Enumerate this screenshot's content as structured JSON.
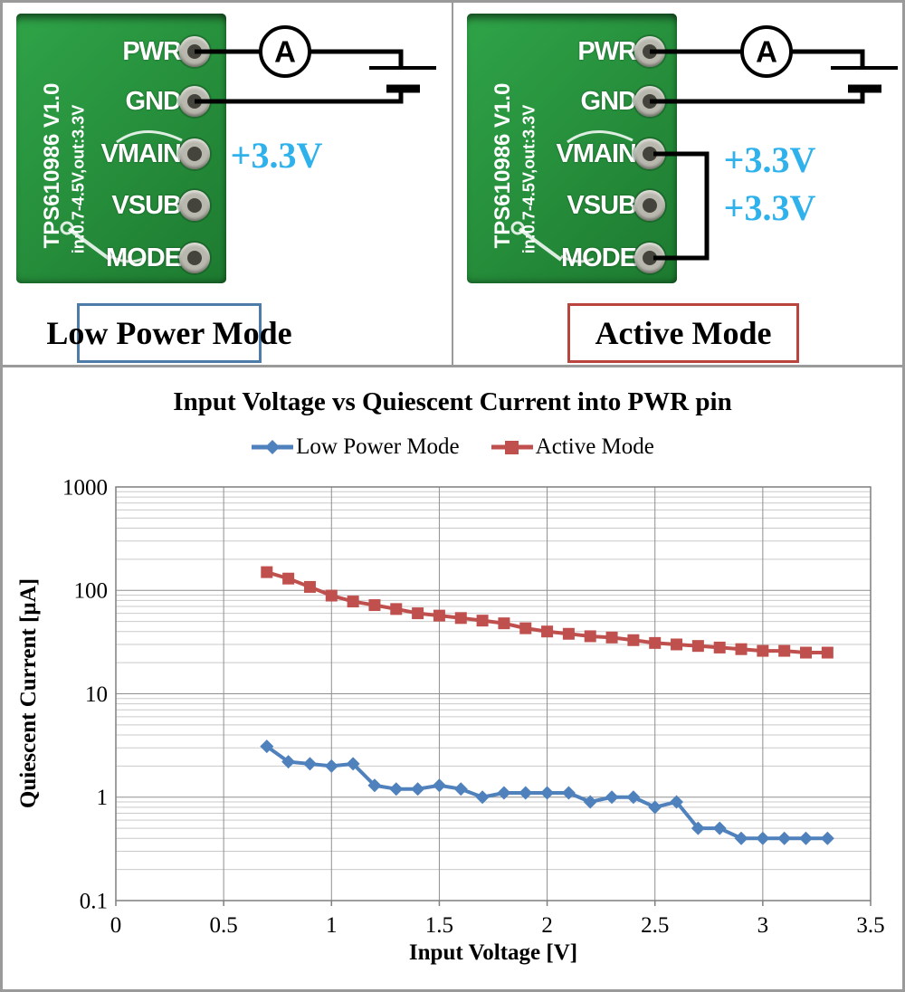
{
  "panels": [
    {
      "id": "low-power",
      "board": {
        "silkscreen_line1": "TPS610986 V1.0",
        "silkscreen_line2": "in:0.7-4.5V,out:3.3V",
        "pins": [
          "PWR",
          "GND",
          "VMAIN",
          "VSUB",
          "MODE"
        ]
      },
      "ammeter_label": "A",
      "voltage_labels": [
        "+3.3V"
      ],
      "caption": "Low Power Mode",
      "caption_border_color": "#4e7ca8"
    },
    {
      "id": "active",
      "board": {
        "silkscreen_line1": "TPS610986 V1.0",
        "silkscreen_line2": "in:0.7-4.5V,out:3.3V",
        "pins": [
          "PWR",
          "GND",
          "VMAIN",
          "VSUB",
          "MODE"
        ]
      },
      "ammeter_label": "A",
      "voltage_labels": [
        "+3.3V",
        "+3.3V"
      ],
      "caption": "Active Mode",
      "caption_border_color": "#b9453e"
    }
  ],
  "colors": {
    "voltage_label": "#2fb1ec",
    "grid_minor": "#c9c9c9",
    "grid_major": "#8f8f8f",
    "plot_border": "#7f7f7f"
  },
  "chart_data": {
    "type": "line",
    "title": "Input Voltage vs Quiescent Current into PWR pin",
    "xlabel": "Input Voltage [V]",
    "ylabel": "Quiescent Current [µA]",
    "x_scale": "linear",
    "y_scale": "log",
    "xlim": [
      0,
      3.5
    ],
    "ylim": [
      0.1,
      1000
    ],
    "grid": true,
    "legend_position": "top-center",
    "x_ticks": [
      0,
      0.5,
      1,
      1.5,
      2,
      2.5,
      3,
      3.5
    ],
    "x_tick_labels": [
      "0",
      "0.5",
      "1",
      "1.5",
      "2",
      "2.5",
      "3",
      "3.5"
    ],
    "y_ticks": [
      0.1,
      1,
      10,
      100,
      1000
    ],
    "y_tick_labels": [
      "0.1",
      "1",
      "10",
      "100",
      "1000"
    ],
    "x": [
      0.7,
      0.8,
      0.9,
      1.0,
      1.1,
      1.2,
      1.3,
      1.4,
      1.5,
      1.6,
      1.7,
      1.8,
      1.9,
      2.0,
      2.1,
      2.2,
      2.3,
      2.4,
      2.5,
      2.6,
      2.7,
      2.8,
      2.9,
      3.0,
      3.1,
      3.2,
      3.3
    ],
    "series": [
      {
        "name": "Low Power Mode",
        "color": "#4f81bd",
        "marker": "diamond",
        "values": [
          3.1,
          2.2,
          2.1,
          2.0,
          2.1,
          1.3,
          1.2,
          1.2,
          1.3,
          1.2,
          1.0,
          1.1,
          1.1,
          1.1,
          1.1,
          0.9,
          1.0,
          1.0,
          0.8,
          0.9,
          0.5,
          0.5,
          0.4,
          0.4,
          0.4,
          0.4,
          0.4
        ]
      },
      {
        "name": "Active Mode",
        "color": "#c0504d",
        "marker": "square",
        "values": [
          150,
          130,
          108,
          89,
          78,
          72,
          66,
          60,
          57,
          54,
          51,
          48,
          43,
          40,
          38,
          36,
          35,
          33,
          31,
          30,
          29,
          28,
          27,
          26,
          26,
          25,
          25
        ]
      }
    ]
  }
}
